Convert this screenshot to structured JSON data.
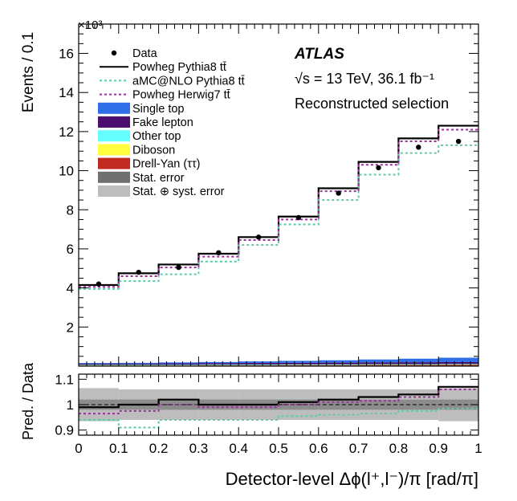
{
  "chart_data": {
    "type": "histogram",
    "bin_edges": [
      0,
      0.1,
      0.2,
      0.3,
      0.4,
      0.5,
      0.6,
      0.7,
      0.8,
      0.9,
      1.0
    ],
    "bin_centers": [
      0.05,
      0.15,
      0.25,
      0.35,
      0.45,
      0.55,
      0.65,
      0.75,
      0.85,
      0.95
    ],
    "main": {
      "ylabel": "Events / 0.1",
      "yscale_label": "×10³",
      "ylim": [
        0,
        17.5
      ],
      "yticks": [
        2,
        4,
        6,
        8,
        10,
        12,
        14,
        16
      ],
      "ytick_labels": [
        "2",
        "4",
        "6",
        "8",
        "10",
        "12",
        "14",
        "16"
      ],
      "series": [
        {
          "name": "Data",
          "style": "points",
          "color": "#000000",
          "values": [
            4.2,
            4.8,
            5.05,
            5.8,
            6.6,
            7.6,
            8.85,
            10.15,
            11.2,
            11.5
          ]
        },
        {
          "name": "Powheg Pythia8 tt̄",
          "style": "solid-step",
          "color": "#000000",
          "values": [
            4.15,
            4.75,
            5.2,
            5.75,
            6.6,
            7.65,
            9.1,
            10.45,
            11.65,
            12.3
          ]
        },
        {
          "name": "aMC@NLO Pythia8 tt̄",
          "style": "dotted-step",
          "color": "#5fc9a9",
          "values": [
            3.95,
            4.35,
            4.7,
            5.35,
            6.2,
            7.25,
            8.5,
            9.8,
            10.9,
            11.3
          ]
        },
        {
          "name": "Powheg Herwig7 tt̄",
          "style": "dotted-step",
          "color": "#993399",
          "values": [
            4.05,
            4.6,
            5.05,
            5.6,
            6.45,
            7.5,
            8.95,
            10.3,
            11.5,
            12.1
          ]
        }
      ],
      "backgrounds": [
        {
          "name": "Drell-Yan (ττ)",
          "color": "#c02a20",
          "values": [
            0.05,
            0.05,
            0.05,
            0.06,
            0.06,
            0.07,
            0.07,
            0.08,
            0.08,
            0.09
          ]
        },
        {
          "name": "Diboson",
          "color": "#ffff40",
          "values": [
            0.01,
            0.01,
            0.01,
            0.01,
            0.01,
            0.01,
            0.01,
            0.01,
            0.01,
            0.01
          ]
        },
        {
          "name": "Other top",
          "color": "#66ffff",
          "values": [
            0.01,
            0.01,
            0.01,
            0.01,
            0.01,
            0.01,
            0.01,
            0.01,
            0.01,
            0.01
          ]
        },
        {
          "name": "Fake lepton",
          "color": "#4a0e6e",
          "values": [
            0.06,
            0.06,
            0.07,
            0.07,
            0.08,
            0.08,
            0.09,
            0.09,
            0.1,
            0.1
          ]
        },
        {
          "name": "Single top",
          "color": "#2f6fe8",
          "values": [
            0.03,
            0.04,
            0.05,
            0.06,
            0.08,
            0.1,
            0.12,
            0.15,
            0.18,
            0.22
          ]
        }
      ],
      "legend": [
        {
          "label": "Data",
          "kind": "dot",
          "color": "#000000"
        },
        {
          "label": "Powheg Pythia8 tt̄",
          "kind": "solid",
          "color": "#000000"
        },
        {
          "label": "aMC@NLO Pythia8 tt̄",
          "kind": "dotted",
          "color": "#5fc9a9"
        },
        {
          "label": "Powheg Herwig7 tt̄",
          "kind": "dotted",
          "color": "#993399"
        },
        {
          "label": "Single top",
          "kind": "box",
          "color": "#2f6fe8"
        },
        {
          "label": "Fake lepton",
          "kind": "box",
          "color": "#4a0e6e"
        },
        {
          "label": "Other top",
          "kind": "box",
          "color": "#66ffff"
        },
        {
          "label": "Diboson",
          "kind": "box",
          "color": "#ffff40"
        },
        {
          "label": "Drell-Yan (ττ)",
          "kind": "box",
          "color": "#c02a20"
        },
        {
          "label": "Stat. error",
          "kind": "box",
          "color": "#707070"
        },
        {
          "label": "Stat. ⊕ syst. error",
          "kind": "box",
          "color": "#bdbdbd"
        }
      ],
      "atlas_label": "ATLAS",
      "energy_label": "√s = 13 TeV, 36.1 fb⁻¹",
      "selection_label": "Reconstructed selection"
    },
    "ratio": {
      "ylabel": "Pred. / Data",
      "ylim": [
        0.88,
        1.12
      ],
      "yticks": [
        0.9,
        1.0,
        1.1
      ],
      "ytick_labels": [
        "0.9",
        "1",
        "1.1"
      ],
      "syst_band": [
        0.065,
        0.06,
        0.06,
        0.06,
        0.06,
        0.06,
        0.06,
        0.06,
        0.06,
        0.065
      ],
      "stat_band": [
        0.02,
        0.02,
        0.02,
        0.02,
        0.02,
        0.02,
        0.02,
        0.02,
        0.02,
        0.02
      ],
      "series": [
        {
          "name": "Powheg Pythia8 tt̄",
          "style": "solid-step",
          "color": "#000000",
          "values": [
            0.99,
            1.0,
            1.02,
            1.0,
            1.0,
            1.01,
            1.02,
            1.03,
            1.04,
            1.07
          ]
        },
        {
          "name": "aMC@NLO Pythia8 tt̄",
          "style": "dotted-step",
          "color": "#5fc9a9",
          "values": [
            0.94,
            0.91,
            0.94,
            0.94,
            0.94,
            0.955,
            0.96,
            0.965,
            0.975,
            0.985
          ]
        },
        {
          "name": "Powheg Herwig7 tt̄",
          "style": "dotted-step",
          "color": "#993399",
          "values": [
            0.965,
            0.975,
            1.0,
            0.99,
            0.99,
            1.0,
            1.01,
            1.015,
            1.03,
            1.06
          ]
        }
      ]
    },
    "x": {
      "xlim": [
        0,
        1
      ],
      "xticks": [
        0,
        0.1,
        0.2,
        0.3,
        0.4,
        0.5,
        0.6,
        0.7,
        0.8,
        0.9,
        1
      ],
      "xtick_labels": [
        "0",
        "0.1",
        "0.2",
        "0.3",
        "0.4",
        "0.5",
        "0.6",
        "0.7",
        "0.8",
        "0.9",
        "1"
      ],
      "xlabel": "Detector-level Δϕ(l⁺,l⁻)/π [rad/π]"
    }
  }
}
